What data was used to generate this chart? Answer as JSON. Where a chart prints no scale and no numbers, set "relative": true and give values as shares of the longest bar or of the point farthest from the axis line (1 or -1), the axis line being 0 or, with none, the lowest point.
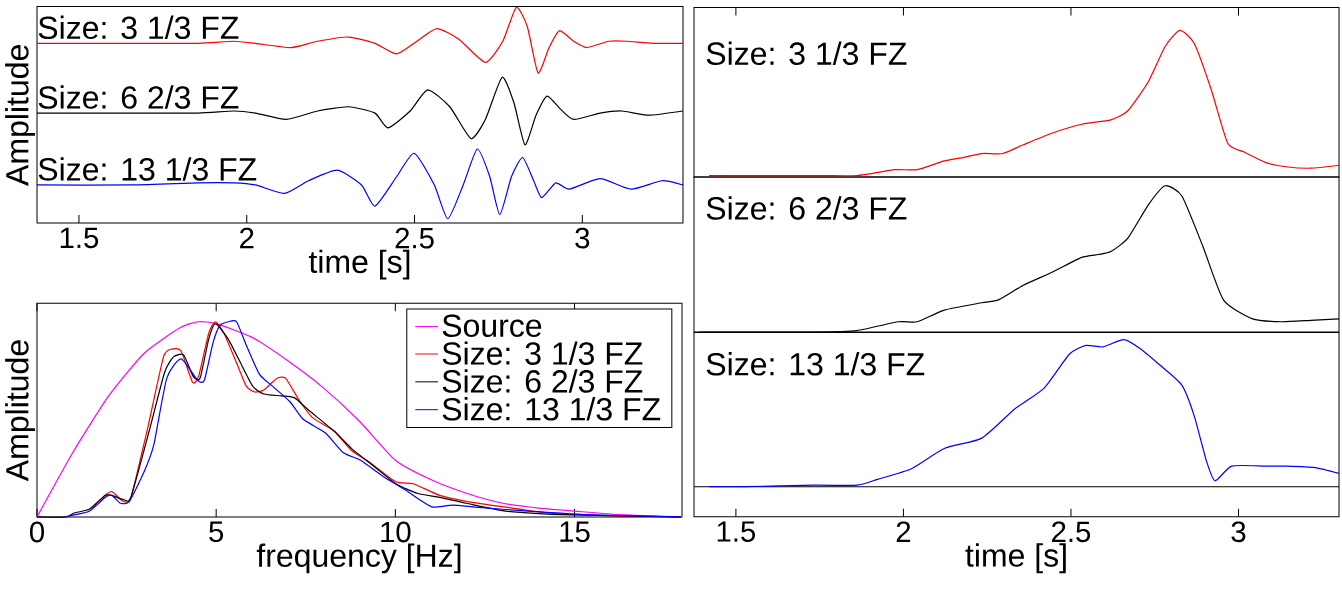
{
  "chart_data": [
    {
      "type": "line",
      "relative": true,
      "xlabel": "time [s]",
      "ylabel": "Amplitude",
      "xlim": [
        1.375,
        3.3
      ],
      "xticks": [
        1.5,
        2,
        2.5,
        3
      ],
      "series": [
        {
          "name": "Size: 3 1/3 FZ",
          "color": "#ff0000",
          "x": [
            1.375,
            1.658,
            1.855,
            1.961,
            2.026,
            2.132,
            2.211,
            2.303,
            2.382,
            2.447,
            2.507,
            2.566,
            2.632,
            2.711,
            2.763,
            2.803,
            2.836,
            2.868,
            2.901,
            2.932,
            2.974,
            3.013,
            3.079,
            3.132,
            3.211,
            3.3
          ],
          "values": [
            0.83,
            0.83,
            0.83,
            0.84,
            0.83,
            0.81,
            0.84,
            0.86,
            0.83,
            0.78,
            0.84,
            0.9,
            0.85,
            0.74,
            0.84,
            1.0,
            0.91,
            0.69,
            0.81,
            0.89,
            0.84,
            0.81,
            0.84,
            0.84,
            0.83,
            0.83
          ]
        },
        {
          "name": "Size: 6 2/3 FZ",
          "color": "#000000",
          "x": [
            1.375,
            1.658,
            1.855,
            1.961,
            2.026,
            2.118,
            2.211,
            2.303,
            2.382,
            2.421,
            2.487,
            2.539,
            2.605,
            2.668,
            2.711,
            2.761,
            2.796,
            2.829,
            2.862,
            2.895,
            2.934,
            2.974,
            3.053,
            3.118,
            3.197,
            3.3
          ],
          "values": [
            0.5,
            0.5,
            0.5,
            0.51,
            0.5,
            0.47,
            0.51,
            0.53,
            0.5,
            0.43,
            0.51,
            0.61,
            0.53,
            0.38,
            0.47,
            0.67,
            0.55,
            0.35,
            0.49,
            0.58,
            0.52,
            0.47,
            0.5,
            0.51,
            0.49,
            0.51
          ]
        },
        {
          "name": "Size: 13 1/3 FZ",
          "color": "#0000ff",
          "x": [
            1.375,
            1.658,
            1.855,
            1.961,
            2.026,
            2.112,
            2.184,
            2.27,
            2.342,
            2.382,
            2.447,
            2.499,
            2.559,
            2.599,
            2.645,
            2.687,
            2.724,
            2.754,
            2.789,
            2.822,
            2.855,
            2.879,
            2.921,
            2.961,
            3.053,
            3.145,
            3.237,
            3.3
          ],
          "values": [
            0.16,
            0.16,
            0.17,
            0.17,
            0.16,
            0.12,
            0.18,
            0.23,
            0.16,
            0.06,
            0.2,
            0.31,
            0.16,
            0.0,
            0.16,
            0.33,
            0.2,
            0.02,
            0.2,
            0.29,
            0.18,
            0.1,
            0.17,
            0.14,
            0.19,
            0.14,
            0.18,
            0.16
          ]
        }
      ]
    },
    {
      "type": "line",
      "relative": true,
      "xlim": [
        1.375,
        3.3
      ],
      "xticks": [
        1.5,
        2,
        2.5,
        3
      ],
      "tick_labels": false,
      "series": [
        {
          "name": "Size: 3 1/3 FZ",
          "color": "#ff0000",
          "x": [
            1.42,
            1.736,
            1.861,
            1.973,
            2.041,
            2.122,
            2.172,
            2.234,
            2.296,
            2.358,
            2.445,
            2.532,
            2.619,
            2.669,
            2.731,
            2.781,
            2.825,
            2.868,
            2.918,
            2.968,
            3.017,
            3.08,
            3.142,
            3.216,
            3.3
          ],
          "values": [
            0.01,
            0.01,
            0.01,
            0.05,
            0.05,
            0.11,
            0.13,
            0.16,
            0.16,
            0.22,
            0.3,
            0.36,
            0.39,
            0.45,
            0.65,
            0.89,
            1.0,
            0.91,
            0.6,
            0.23,
            0.17,
            0.1,
            0.07,
            0.06,
            0.08
          ]
        }
      ]
    },
    {
      "type": "line",
      "relative": true,
      "xlim": [
        1.375,
        3.3
      ],
      "tick_labels": false,
      "series": [
        {
          "name": "Size: 6 2/3 FZ",
          "color": "#000000",
          "x": [
            1.39,
            1.736,
            1.861,
            1.985,
            2.041,
            2.122,
            2.234,
            2.284,
            2.358,
            2.445,
            2.532,
            2.582,
            2.619,
            2.669,
            2.731,
            2.781,
            2.831,
            2.893,
            2.955,
            3.042,
            3.129,
            3.216,
            3.3
          ],
          "values": [
            0,
            0,
            0.01,
            0.07,
            0.07,
            0.15,
            0.2,
            0.22,
            0.32,
            0.41,
            0.51,
            0.53,
            0.55,
            0.64,
            0.87,
            1.0,
            0.93,
            0.59,
            0.22,
            0.09,
            0.07,
            0.08,
            0.09
          ]
        }
      ]
    },
    {
      "type": "line",
      "relative": true,
      "xlabel": "time [s]",
      "xlim": [
        1.375,
        3.3
      ],
      "xticks": [
        1.5,
        2,
        2.5,
        3
      ],
      "tick_labels": "x",
      "series": [
        {
          "name": "Size: 13 1/3 FZ",
          "color": "#0000ff",
          "x": [
            1.42,
            1.525,
            1.736,
            1.861,
            1.923,
            2.022,
            2.122,
            2.234,
            2.333,
            2.42,
            2.495,
            2.545,
            2.595,
            2.657,
            2.706,
            2.769,
            2.831,
            2.868,
            2.905,
            2.93,
            2.98,
            3.08,
            3.142,
            3.229,
            3.3
          ],
          "values": [
            0,
            0,
            0.01,
            0.01,
            0.05,
            0.12,
            0.26,
            0.33,
            0.53,
            0.67,
            0.9,
            0.96,
            0.95,
            1.0,
            0.94,
            0.82,
            0.69,
            0.48,
            0.17,
            0.04,
            0.14,
            0.14,
            0.14,
            0.13,
            0.09
          ]
        }
      ]
    },
    {
      "type": "line",
      "relative": true,
      "xlabel": "frequency [Hz]",
      "ylabel": "Amplitude",
      "xlim": [
        0,
        18
      ],
      "xticks": [
        0,
        5,
        10,
        15
      ],
      "legend": "top right",
      "series": [
        {
          "name": "Source",
          "color": "#ff00ff",
          "x": [
            0,
            1,
            2,
            3,
            4,
            4.5,
            5,
            6,
            7,
            8,
            9,
            10,
            11,
            12,
            13,
            14,
            15,
            16,
            17,
            18
          ],
          "values": [
            0,
            0.33,
            0.62,
            0.84,
            0.97,
            1.0,
            0.99,
            0.92,
            0.8,
            0.66,
            0.49,
            0.29,
            0.19,
            0.12,
            0.07,
            0.045,
            0.03,
            0.015,
            0.006,
            0
          ]
        },
        {
          "name": "Size: 3 1/3 FZ",
          "color": "#ff0000",
          "x": [
            1.47,
            1.9,
            2.09,
            2.4,
            2.62,
            3.07,
            3.53,
            3.77,
            4.02,
            4.34,
            4.51,
            4.79,
            4.98,
            5.22,
            5.59,
            5.84,
            6.08,
            6.33,
            6.7,
            6.94,
            7.31,
            7.68,
            8.29,
            8.78,
            9.28,
            10.01,
            10.5,
            11.24,
            11.98,
            13.08,
            14.31,
            16.15,
            17.97
          ],
          "values": [
            0.04,
            0.11,
            0.13,
            0.08,
            0.1,
            0.44,
            0.82,
            0.86,
            0.85,
            0.69,
            0.72,
            0.94,
            1.0,
            0.94,
            0.78,
            0.67,
            0.64,
            0.65,
            0.71,
            0.71,
            0.6,
            0.51,
            0.44,
            0.34,
            0.28,
            0.18,
            0.17,
            0.11,
            0.08,
            0.05,
            0.02,
            0.005,
            0
          ]
        },
        {
          "name": "Size: 6 2/3 FZ",
          "color": "#000000",
          "x": [
            0,
            0.8,
            1.04,
            1.47,
            1.9,
            2.09,
            2.4,
            2.62,
            3.13,
            3.56,
            3.81,
            4.09,
            4.36,
            4.55,
            4.79,
            4.98,
            5.34,
            5.65,
            6.02,
            6.33,
            6.82,
            7.19,
            7.56,
            8.29,
            8.78,
            9.4,
            10.01,
            10.63,
            11.24,
            11.98,
            13.08,
            14.93,
            17.97
          ],
          "values": [
            0,
            0,
            0.02,
            0.04,
            0.11,
            0.11,
            0.09,
            0.1,
            0.44,
            0.74,
            0.82,
            0.83,
            0.72,
            0.71,
            0.91,
            0.99,
            0.91,
            0.8,
            0.67,
            0.63,
            0.62,
            0.61,
            0.55,
            0.44,
            0.35,
            0.26,
            0.17,
            0.12,
            0.1,
            0.07,
            0.03,
            0.01,
            0
          ]
        },
        {
          "name": "Size: 13 1/3 FZ",
          "color": "#0000ff",
          "x": [
            0.8,
            1.04,
            1.47,
            1.9,
            2.09,
            2.33,
            2.58,
            3.01,
            3.26,
            3.62,
            4.02,
            4.48,
            4.67,
            4.91,
            5.1,
            5.34,
            5.57,
            5.84,
            6.21,
            6.57,
            7.06,
            7.43,
            8.05,
            8.54,
            9.03,
            9.64,
            10.26,
            10.75,
            11.06,
            11.61,
            12.22,
            13.7,
            15.54,
            17.97
          ],
          "values": [
            0,
            0.01,
            0.03,
            0.1,
            0.11,
            0.07,
            0.08,
            0.24,
            0.37,
            0.71,
            0.81,
            0.7,
            0.7,
            0.89,
            0.98,
            1.0,
            1.0,
            0.88,
            0.73,
            0.67,
            0.59,
            0.5,
            0.43,
            0.33,
            0.29,
            0.21,
            0.14,
            0.08,
            0.05,
            0.06,
            0.05,
            0.03,
            0.01,
            0
          ]
        }
      ]
    }
  ]
}
